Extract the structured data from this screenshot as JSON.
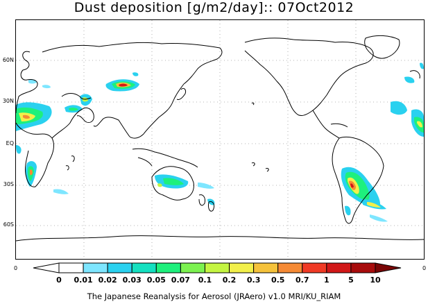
{
  "title": "Dust deposition [g/m2/day]:: 07Oct2012",
  "lat_labels": [
    "60N",
    "30N",
    "EQ",
    "30S",
    "60S"
  ],
  "frame_labels": {
    "left": "0",
    "right": "0"
  },
  "legend": {
    "values": [
      "0",
      "0.01",
      "0.02",
      "0.03",
      "0.05",
      "0.07",
      "0.1",
      "0.2",
      "0.3",
      "0.5",
      "0.7",
      "1",
      "5",
      "10"
    ],
    "colors": [
      "#ffffff",
      "#7ee6ff",
      "#2ad1ef",
      "#14e0c0",
      "#1ef07c",
      "#7cf250",
      "#c4f542",
      "#f2f04a",
      "#f5c23b",
      "#f58a35",
      "#f03a25",
      "#d11818",
      "#a80c0c",
      "#7a0606"
    ]
  },
  "footer": "The Japanese Reanalysis for Aerosol (JRAero) v1.0 MRI/KU_RIAM"
}
